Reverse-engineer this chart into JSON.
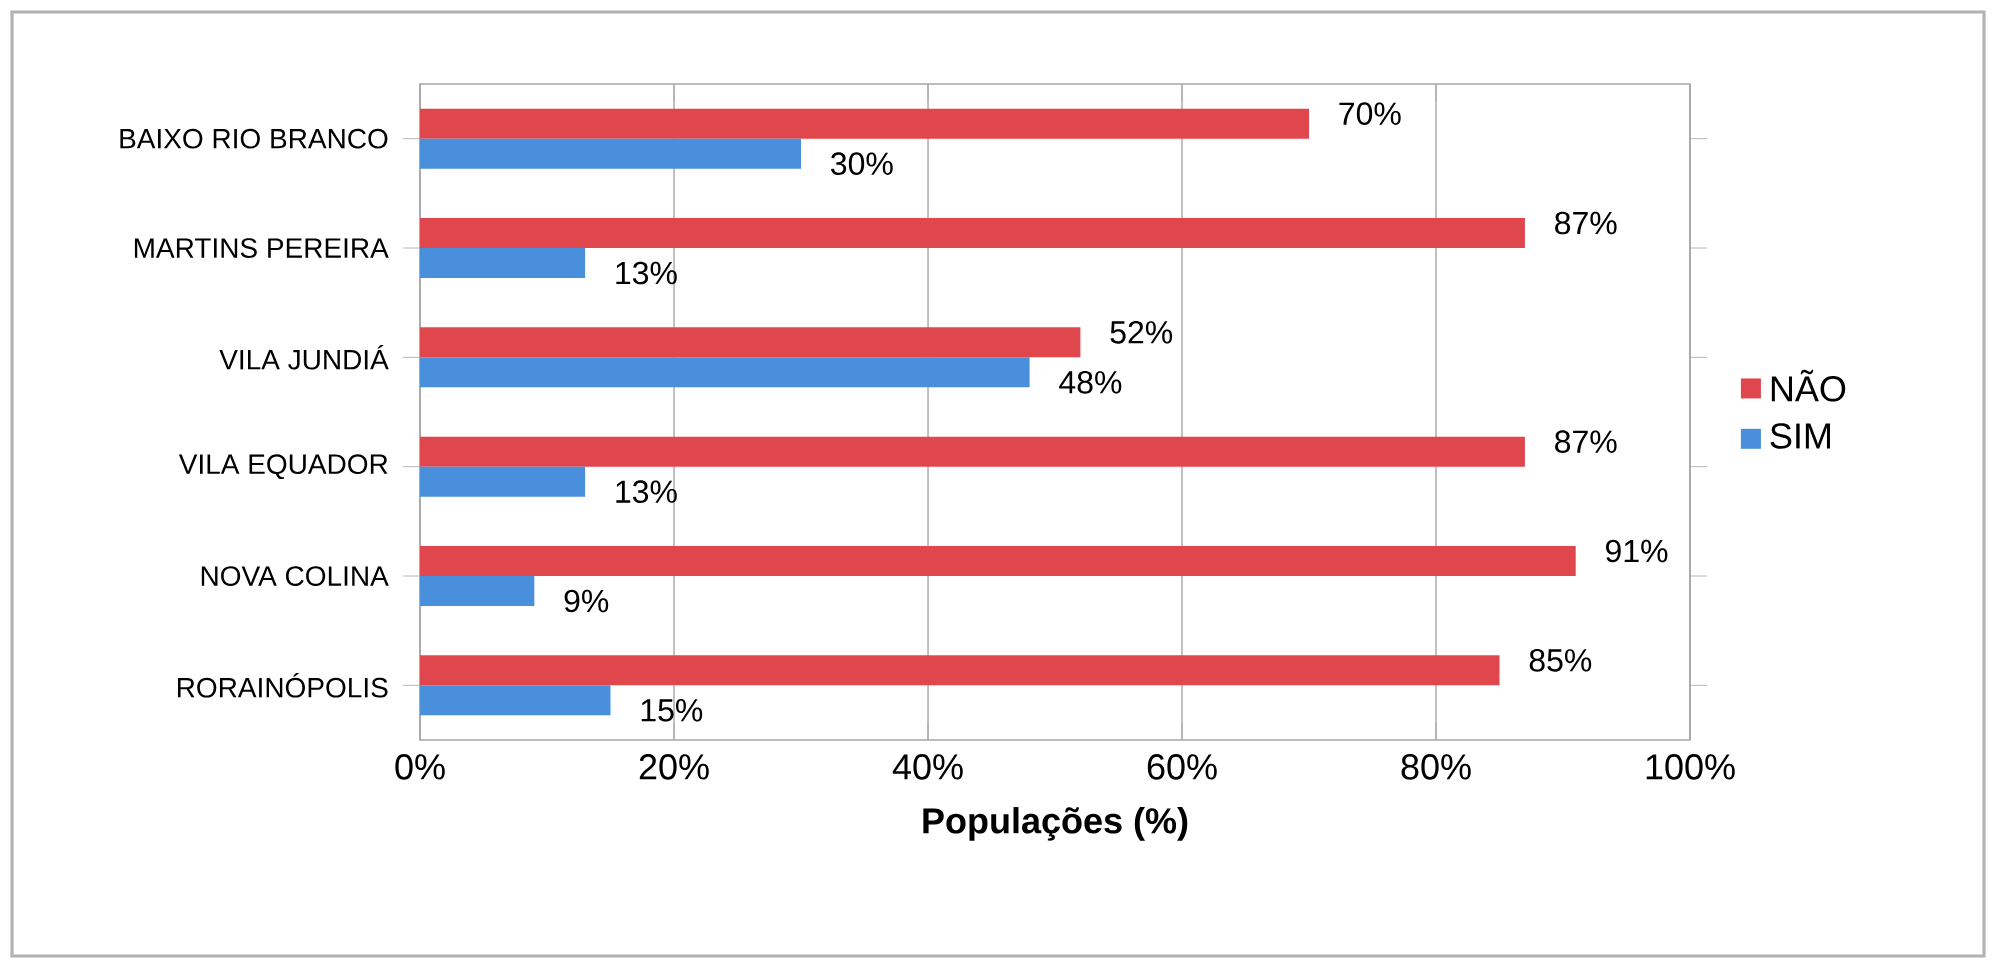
{
  "chart_data": {
    "type": "bar",
    "orientation": "horizontal",
    "xlabel": "Populações (%)",
    "categories": [
      "BAIXO RIO BRANCO",
      "MARTINS PEREIRA",
      "VILA JUNDIÁ",
      "VILA EQUADOR",
      "NOVA COLINA",
      "RORAINÓPOLIS"
    ],
    "series": [
      {
        "name": "NÃO",
        "color": "#e0474c",
        "values": [
          70,
          87,
          52,
          87,
          91,
          85
        ],
        "value_labels": [
          "70%",
          "87%",
          "52%",
          "87%",
          "91%",
          "85%"
        ]
      },
      {
        "name": "SIM",
        "color": "#4a8fdb",
        "values": [
          30,
          13,
          48,
          13,
          9,
          15
        ],
        "value_labels": [
          "30%",
          "13%",
          "48%",
          "13%",
          "9%",
          "15%"
        ]
      }
    ],
    "xlim": [
      0,
      100
    ],
    "xticks": [
      {
        "value": 0,
        "label": "0%"
      },
      {
        "value": 20,
        "label": "20%"
      },
      {
        "value": 40,
        "label": "40%"
      },
      {
        "value": 60,
        "label": "60%"
      },
      {
        "value": 80,
        "label": "80%"
      },
      {
        "value": 100,
        "label": "100%"
      }
    ],
    "grid": "x",
    "legend": "right"
  }
}
